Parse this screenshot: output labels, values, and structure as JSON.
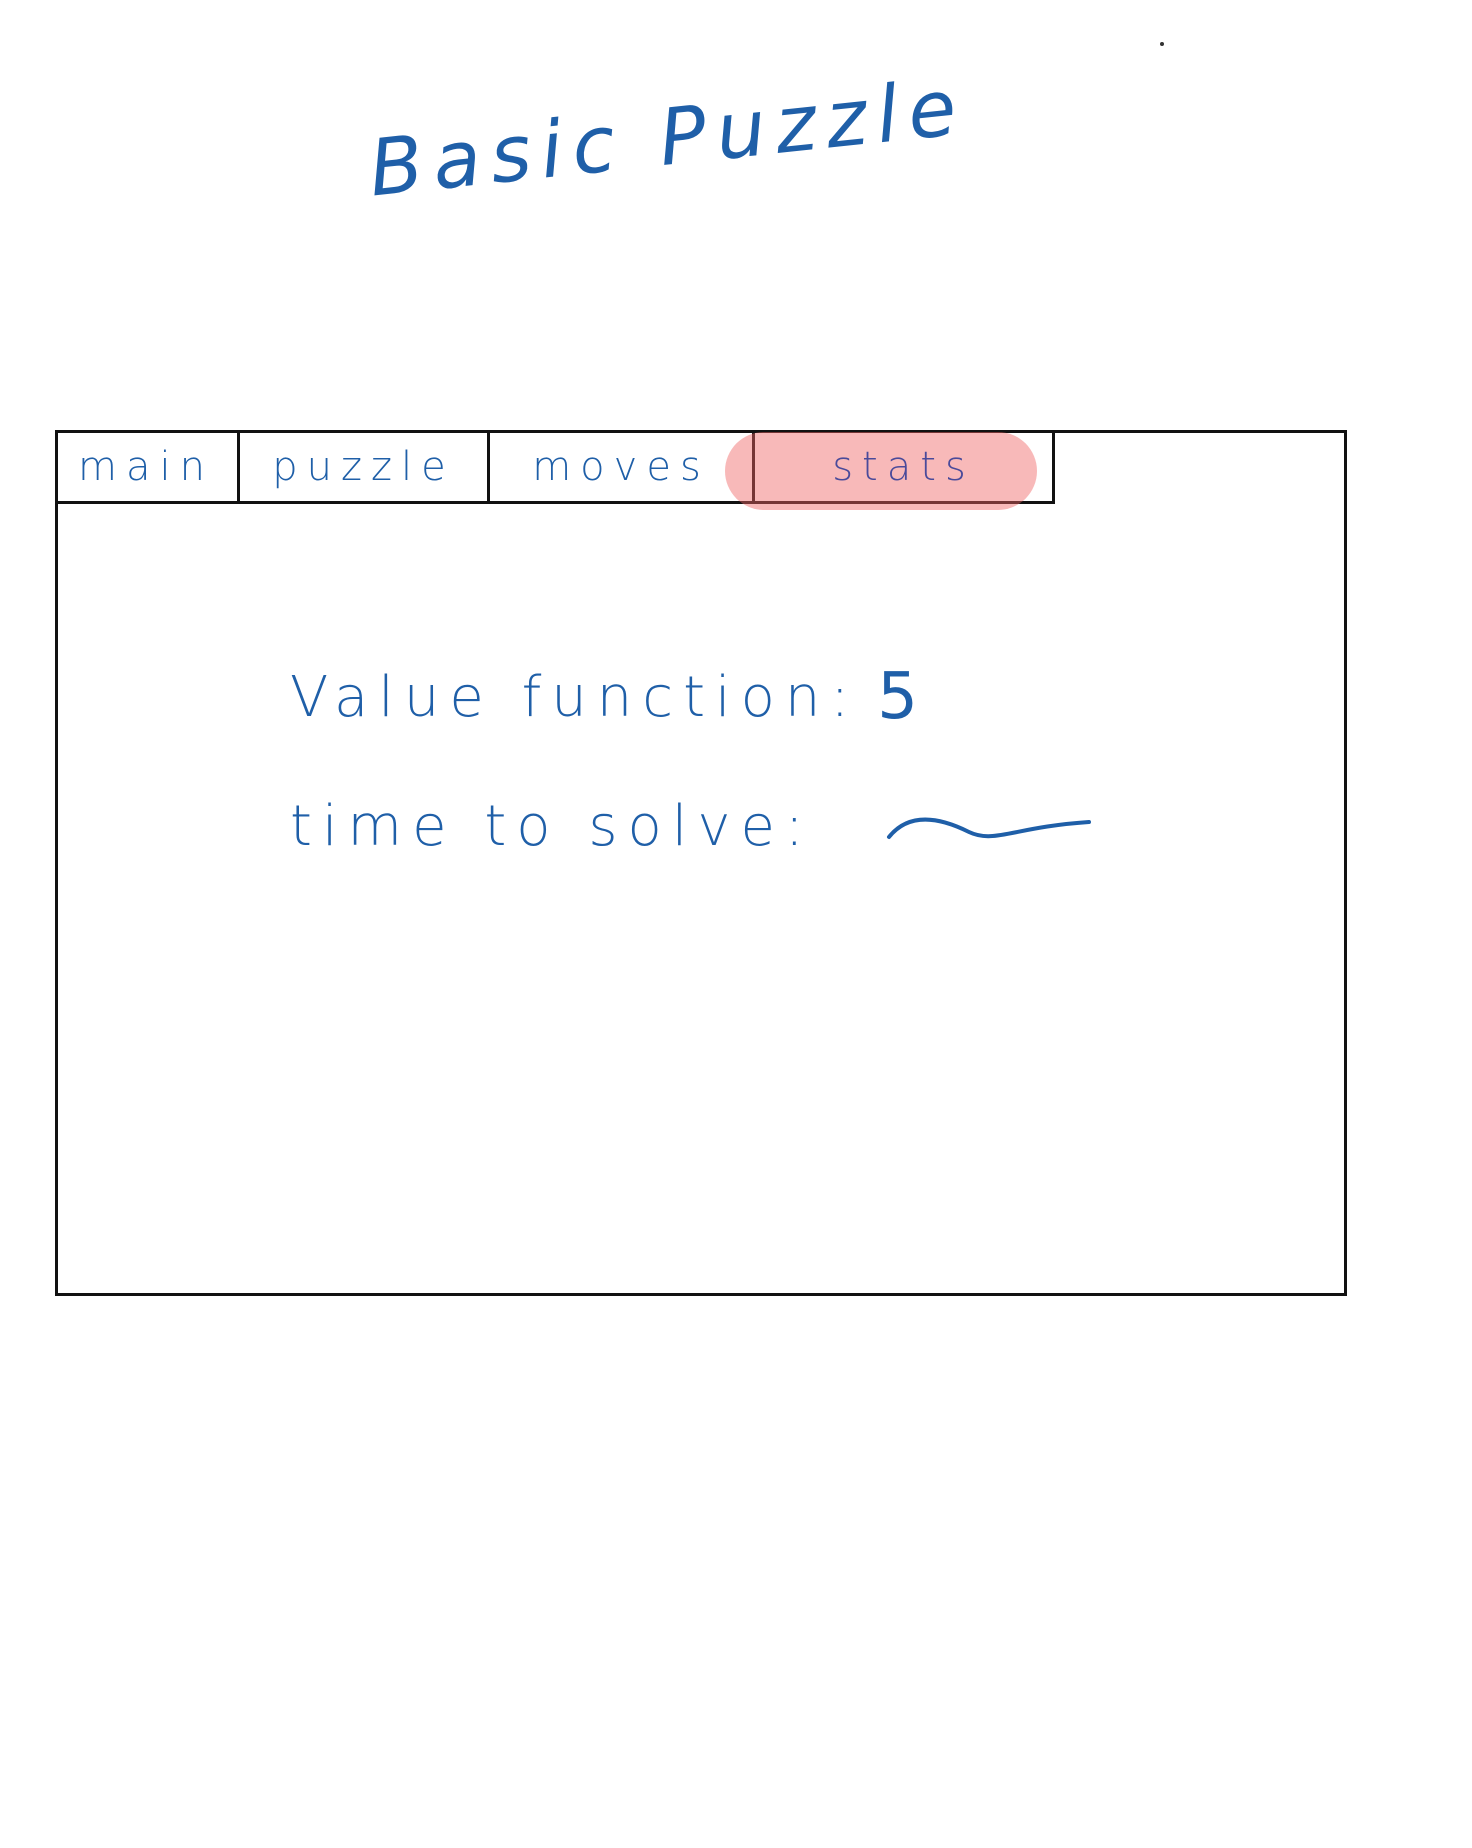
{
  "app": {
    "title": "Basic Puzzle"
  },
  "tabs": [
    {
      "label": "main",
      "selected": false
    },
    {
      "label": "puzzle",
      "selected": false
    },
    {
      "label": "moves",
      "selected": false
    },
    {
      "label": "stats",
      "selected": true
    }
  ],
  "stats": {
    "value_function_label": "Value function:",
    "value_function_value": "5",
    "time_to_solve_label": "time to solve:",
    "time_to_solve_value_icon": "squiggle-placeholder"
  },
  "colors": {
    "ink": "#1f5fa8",
    "frame": "#111111",
    "selected_tab_highlight": "#f06464"
  }
}
